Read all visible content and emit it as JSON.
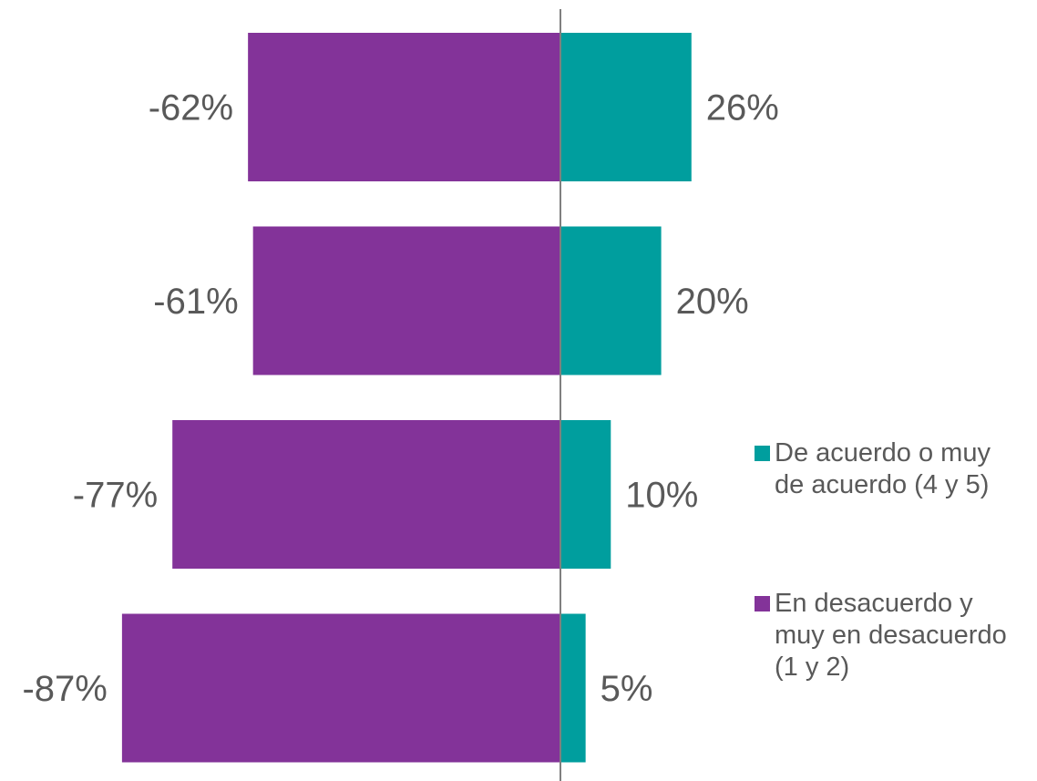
{
  "chart_data": {
    "type": "bar",
    "orientation": "horizontal",
    "stacked": "diverging",
    "categories": [
      "",
      "",
      "",
      ""
    ],
    "series": [
      {
        "name": "De acuerdo o muy de acuerdo (4 y 5)",
        "color": "#009E9E",
        "values": [
          26,
          20,
          10,
          5
        ],
        "labels": [
          "26%",
          "20%",
          "10%",
          "5%"
        ]
      },
      {
        "name": "En desacuerdo y muy en desacuerdo (1 y 2)",
        "color": "#833399",
        "values": [
          -62,
          -61,
          -77,
          -87
        ],
        "labels": [
          "-62%",
          "-61%",
          "-77%",
          "-87%"
        ]
      }
    ],
    "xlim": [
      -87,
      26
    ],
    "grid": false,
    "legend": "right"
  },
  "legend": {
    "items": [
      {
        "label": "De acuerdo o muy\nde acuerdo (4 y 5)",
        "color": "#009E9E"
      },
      {
        "label": "En desacuerdo y\nmuy en desacuerdo\n(1 y 2)",
        "color": "#833399"
      }
    ]
  },
  "colors": {
    "axis": "#7F7F7F",
    "label": "#595959"
  }
}
